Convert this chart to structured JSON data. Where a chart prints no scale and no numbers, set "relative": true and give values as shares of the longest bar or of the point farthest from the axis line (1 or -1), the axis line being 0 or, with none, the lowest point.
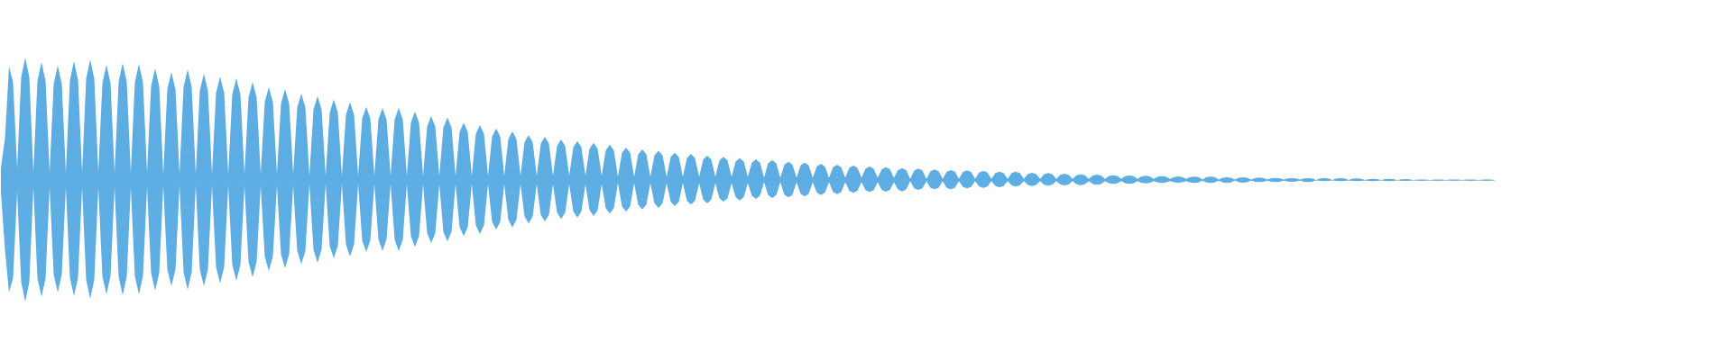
{
  "chart_data": {
    "type": "area",
    "relative": true,
    "categories": [
      null,
      null,
      null,
      null,
      null,
      null,
      null,
      null,
      null,
      null,
      null,
      null,
      null,
      null,
      null,
      null,
      null,
      null,
      null,
      null,
      null,
      null,
      null,
      null,
      null,
      null,
      null,
      null,
      null,
      null,
      null,
      null,
      null,
      null,
      null,
      null,
      null,
      null,
      null,
      null,
      null,
      null,
      null,
      null,
      null,
      null,
      null,
      null,
      null,
      null,
      null,
      null,
      null,
      null,
      null,
      null,
      null,
      null,
      null,
      null,
      null,
      null,
      null,
      null,
      null,
      null,
      null,
      null,
      null,
      null,
      null,
      null,
      null,
      null,
      null,
      null,
      null,
      null,
      null,
      null,
      null,
      null,
      null,
      null,
      null,
      null,
      null,
      null,
      null,
      null,
      null,
      null,
      null,
      null,
      null,
      null,
      null,
      null,
      null,
      null,
      null,
      null,
      null,
      null,
      null,
      null,
      null,
      null,
      null,
      null,
      null,
      null,
      null,
      null,
      null,
      null,
      null,
      null,
      null,
      null,
      null,
      null,
      null,
      null,
      null,
      null,
      null,
      null,
      null,
      null,
      null,
      null,
      null,
      null,
      null,
      null,
      null,
      null,
      null,
      null,
      null,
      null,
      null,
      null,
      null,
      null,
      null,
      null,
      null,
      null,
      null,
      null,
      null,
      null,
      null,
      null,
      null,
      null,
      null,
      null,
      null,
      null,
      null,
      null,
      null,
      null,
      null,
      null,
      null,
      null,
      null,
      null,
      null,
      null,
      null,
      null,
      null,
      null,
      null,
      null,
      null,
      null,
      null,
      null,
      null,
      null,
      null,
      null,
      null,
      null,
      null,
      null,
      null,
      null,
      null,
      null,
      null,
      null,
      null,
      null,
      null,
      null,
      null,
      null,
      null,
      null,
      null,
      null,
      null,
      null,
      null,
      null,
      null,
      null,
      null,
      null,
      null,
      null,
      null,
      null,
      null,
      null,
      null,
      null,
      null,
      null,
      null,
      null,
      null,
      null,
      null,
      null,
      null,
      null,
      null,
      null,
      null,
      null,
      null,
      null,
      null,
      null,
      null,
      null,
      null,
      null,
      null,
      null,
      null,
      null,
      null,
      null,
      null,
      null,
      null,
      null,
      null,
      null,
      null,
      null,
      null,
      null,
      null,
      null,
      null,
      null,
      null,
      null,
      null,
      null,
      null,
      null,
      null,
      null,
      null,
      null,
      null,
      null,
      null,
      null,
      null,
      null,
      null,
      null,
      null,
      null,
      null,
      null,
      null,
      null,
      null,
      null,
      null,
      null,
      null,
      null,
      null,
      null,
      null,
      null,
      null,
      null,
      null,
      null,
      null,
      null,
      null,
      null,
      null,
      null,
      null,
      null,
      null,
      null,
      null,
      null,
      null,
      null,
      null,
      null,
      null,
      null,
      null,
      null,
      null,
      null,
      null,
      null,
      null,
      null,
      null,
      null,
      null,
      null,
      null,
      null,
      null,
      null,
      null,
      null,
      null,
      null,
      null,
      null,
      null,
      null,
      null,
      null,
      null,
      null,
      null,
      null,
      null,
      null,
      null,
      null,
      null,
      null,
      null,
      null,
      null,
      null,
      null,
      null,
      null,
      null,
      null,
      null,
      null
    ],
    "series": [
      {
        "color": "#5dade2",
        "values": [
          0.098,
          0.34,
          0.926,
          0.8,
          0.1,
          0.84,
          1,
          0.84,
          0.06,
          0.809,
          0.963,
          0.809,
          0.06,
          0.785,
          0.934,
          0.785,
          0.06,
          0.816,
          0.971,
          0.816,
          0.06,
          0.827,
          0.985,
          0.827,
          0.06,
          0.79,
          0.941,
          0.79,
          0.06,
          0.803,
          0.956,
          0.803,
          0.06,
          0.797,
          0.949,
          0.797,
          0.06,
          0.766,
          0.912,
          0.766,
          0.05,
          0.741,
          0.882,
          0.741,
          0.05,
          0.759,
          0.904,
          0.759,
          0.05,
          0.729,
          0.868,
          0.729,
          0.05,
          0.711,
          0.846,
          0.711,
          0.05,
          0.698,
          0.831,
          0.698,
          0.05,
          0.673,
          0.801,
          0.673,
          0.05,
          0.636,
          0.757,
          0.636,
          0.05,
          0.624,
          0.743,
          0.624,
          0.05,
          0.593,
          0.706,
          0.593,
          0.035,
          0.576,
          0.686,
          0.576,
          0.035,
          0.552,
          0.657,
          0.552,
          0.035,
          0.533,
          0.635,
          0.533,
          0.035,
          0.502,
          0.598,
          0.502,
          0.035,
          0.494,
          0.588,
          0.494,
          0.035,
          0.494,
          0.588,
          0.494,
          0.035,
          0.47,
          0.559,
          0.47,
          0.035,
          0.438,
          0.522,
          0.438,
          0.035,
          0.428,
          0.51,
          0.428,
          0.035,
          0.393,
          0.468,
          0.393,
          0.035,
          0.377,
          0.449,
          0.377,
          0.035,
          0.354,
          0.421,
          0.354,
          0.035,
          0.333,
          0.397,
          0.333,
          0.035,
          0.309,
          0.368,
          0.309,
          0.035,
          0.297,
          0.353,
          0.297,
          0.035,
          0.278,
          0.331,
          0.278,
          0.035,
          0.267,
          0.318,
          0.267,
          0.035,
          0.255,
          0.304,
          0.255,
          0.035,
          0.243,
          0.289,
          0.243,
          0.025,
          0.223,
          0.265,
          0.223,
          0.025,
          0.21,
          0.25,
          0.21,
          0.025,
          0.2,
          0.238,
          0.2,
          0.025,
          0.187,
          0.223,
          0.187,
          0.025,
          0.179,
          0.213,
          0.179,
          0.025,
          0.167,
          0.199,
          0.167,
          0.025,
          0.159,
          0.189,
          0.159,
          0.025,
          0.15,
          0.179,
          0.15,
          0.025,
          0.142,
          0.169,
          0.142,
          0.018,
          0.136,
          0.162,
          0.136,
          0.018,
          0.125,
          0.149,
          0.125,
          0.018,
          0.119,
          0.142,
          0.119,
          0.018,
          0.111,
          0.132,
          0.111,
          0.018,
          0.105,
          0.125,
          0.105,
          0.018,
          0.099,
          0.118,
          0.099,
          0.018,
          0.092,
          0.11,
          0.092,
          0.018,
          0.088,
          0.105,
          0.088,
          0.018,
          0.081,
          0.096,
          0.081,
          0.01,
          0.078,
          0.093,
          0.078,
          0.01,
          0.072,
          0.086,
          0.072,
          0.01,
          0.068,
          0.081,
          0.068,
          0.01,
          0.066,
          0.079,
          0.066,
          0.01,
          0.062,
          0.074,
          0.062,
          0.01,
          0.057,
          0.068,
          0.057,
          0.01,
          0.057,
          0.068,
          0.057,
          0.01,
          0.05,
          0.059,
          0.05,
          0.01,
          0.048,
          0.057,
          0.048,
          0.01,
          0.043,
          0.051,
          0.043,
          0.01,
          0.039,
          0.046,
          0.039,
          0.01,
          0.037,
          0.044,
          0.037,
          0.01,
          0.033,
          0.039,
          0.033,
          0.01,
          0.031,
          0.037,
          0.031,
          0.01,
          0.029,
          0.035,
          0.029,
          0.01,
          0.027,
          0.032,
          0.027,
          0.01,
          0.024,
          0.029,
          0.024,
          0.01,
          0.024,
          0.028,
          0.024,
          0.004,
          0.023,
          0.027,
          0.023,
          0.004,
          0.018,
          0.022,
          0.018,
          0.004,
          0.018,
          0.022,
          0.018,
          0.004,
          0.017,
          0.02,
          0.017,
          0.004,
          0.014,
          0.017,
          0.014,
          0.004,
          0.013,
          0.015,
          0.013,
          0.004,
          0.013,
          0.015,
          0.013,
          0,
          0.013,
          0.015,
          0.013,
          0,
          0.013,
          0.015,
          0.013,
          0,
          0.011,
          0.013,
          0.011,
          0,
          0.008,
          0.01,
          0.008,
          0,
          0.008,
          0.01,
          0.008,
          0,
          0.006,
          0.007,
          0.006,
          0,
          0.003,
          0.004,
          0.003,
          0,
          0.003,
          0.004,
          0.003,
          0,
          0.003,
          0.004,
          0.003,
          0,
          0.003,
          0.004,
          0.003,
          0,
          0.003,
          0.004,
          0.003,
          0
        ]
      },
      {
        "color": "#5eaee3",
        "values": [
          -0.096,
          -0.57,
          -0.919,
          -0.8,
          -0.1,
          -0.834,
          -0.993,
          -0.834,
          -0.06,
          -0.803,
          -0.956,
          -0.803,
          -0.06,
          -0.772,
          -0.919,
          -0.772,
          -0.06,
          -0.797,
          -0.949,
          -0.797,
          -0.06,
          -0.816,
          -0.971,
          -0.816,
          -0.06,
          -0.785,
          -0.934,
          -0.785,
          -0.06,
          -0.79,
          -0.941,
          -0.79,
          -0.06,
          -0.785,
          -0.934,
          -0.785,
          -0.06,
          -0.759,
          -0.904,
          -0.759,
          -0.05,
          -0.729,
          -0.868,
          -0.729,
          -0.05,
          -0.753,
          -0.897,
          -0.753,
          -0.05,
          -0.729,
          -0.868,
          -0.729,
          -0.05,
          -0.711,
          -0.846,
          -0.711,
          -0.05,
          -0.692,
          -0.824,
          -0.692,
          -0.05,
          -0.667,
          -0.794,
          -0.667,
          -0.05,
          -0.624,
          -0.743,
          -0.624,
          -0.05,
          -0.606,
          -0.721,
          -0.606,
          -0.05,
          -0.578,
          -0.688,
          -0.578,
          -0.035,
          -0.568,
          -0.676,
          -0.568,
          -0.035,
          -0.538,
          -0.64,
          -0.538,
          -0.035,
          -0.525,
          -0.625,
          -0.525,
          -0.035,
          -0.494,
          -0.588,
          -0.494,
          -0.035,
          -0.486,
          -0.579,
          -0.486,
          -0.035,
          -0.488,
          -0.581,
          -0.488,
          -0.035,
          -0.459,
          -0.546,
          -0.459,
          -0.035,
          -0.433,
          -0.515,
          -0.433,
          -0.035,
          -0.422,
          -0.502,
          -0.422,
          -0.035,
          -0.385,
          -0.458,
          -0.385,
          -0.035,
          -0.37,
          -0.441,
          -0.37,
          -0.035,
          -0.342,
          -0.407,
          -0.342,
          -0.035,
          -0.326,
          -0.388,
          -0.326,
          -0.035,
          -0.298,
          -0.355,
          -0.298,
          -0.035,
          -0.284,
          -0.338,
          -0.284,
          -0.035,
          -0.267,
          -0.318,
          -0.267,
          -0.035,
          -0.258,
          -0.307,
          -0.258,
          -0.035,
          -0.247,
          -0.294,
          -0.247,
          -0.035,
          -0.23,
          -0.274,
          -0.23,
          -0.025,
          -0.216,
          -0.257,
          -0.216,
          -0.025,
          -0.202,
          -0.24,
          -0.202,
          -0.025,
          -0.192,
          -0.228,
          -0.192,
          -0.025,
          -0.179,
          -0.213,
          -0.179,
          -0.025,
          -0.169,
          -0.201,
          -0.169,
          -0.025,
          -0.16,
          -0.191,
          -0.16,
          -0.025,
          -0.148,
          -0.176,
          -0.148,
          -0.025,
          -0.14,
          -0.167,
          -0.14,
          -0.025,
          -0.129,
          -0.154,
          -0.129,
          -0.018,
          -0.123,
          -0.147,
          -0.123,
          -0.018,
          -0.119,
          -0.142,
          -0.119,
          -0.018,
          -0.113,
          -0.135,
          -0.113,
          -0.018,
          -0.103,
          -0.123,
          -0.103,
          -0.018,
          -0.097,
          -0.115,
          -0.097,
          -0.018,
          -0.088,
          -0.105,
          -0.088,
          -0.018,
          -0.082,
          -0.098,
          -0.082,
          -0.018,
          -0.081,
          -0.096,
          -0.081,
          -0.018,
          -0.078,
          -0.093,
          -0.078,
          -0.01,
          -0.068,
          -0.081,
          -0.068,
          -0.01,
          -0.064,
          -0.076,
          -0.064,
          -0.01,
          -0.064,
          -0.076,
          -0.064,
          -0.01,
          -0.057,
          -0.068,
          -0.057,
          -0.01,
          -0.054,
          -0.064,
          -0.054,
          -0.01,
          -0.05,
          -0.059,
          -0.05,
          -0.01,
          -0.045,
          -0.054,
          -0.045,
          -0.01,
          -0.041,
          -0.049,
          -0.041,
          -0.01,
          -0.039,
          -0.046,
          -0.039,
          -0.01,
          -0.037,
          -0.044,
          -0.037,
          -0.01,
          -0.035,
          -0.042,
          -0.035,
          -0.01,
          -0.033,
          -0.039,
          -0.033,
          -0.01,
          -0.027,
          -0.032,
          -0.027,
          -0.01,
          -0.027,
          -0.032,
          -0.027,
          -0.01,
          -0.023,
          -0.027,
          -0.023,
          -0.01,
          -0.02,
          -0.024,
          -0.02,
          -0.01,
          -0.018,
          -0.022,
          -0.018,
          -0.01,
          -0.02,
          -0.024,
          -0.02,
          -0.004,
          -0.02,
          -0.024,
          -0.02,
          -0.004,
          -0.02,
          -0.024,
          -0.02,
          -0.004,
          -0.018,
          -0.022,
          -0.018,
          -0.004,
          -0.014,
          -0.017,
          -0.014,
          -0.004,
          -0.014,
          -0.017,
          -0.014,
          -0.004,
          -0.013,
          -0.015,
          -0.013,
          -0.004,
          -0.014,
          -0.017,
          -0.014,
          0,
          -0.008,
          -0.01,
          -0.008,
          0,
          -0.008,
          -0.01,
          -0.008,
          0,
          -0.008,
          -0.01,
          -0.008,
          0,
          -0.008,
          -0.01,
          -0.008,
          0,
          -0.008,
          -0.01,
          -0.008,
          0,
          -0.006,
          -0.007,
          -0.006,
          0,
          -0.004,
          -0.005,
          -0.004,
          0,
          -0.004,
          -0.005,
          -0.004,
          0,
          -0.004,
          -0.005,
          -0.004,
          0,
          -0.004,
          -0.005,
          -0.004,
          0,
          -0.004,
          -0.005,
          -0.004,
          0
        ]
      }
    ]
  }
}
